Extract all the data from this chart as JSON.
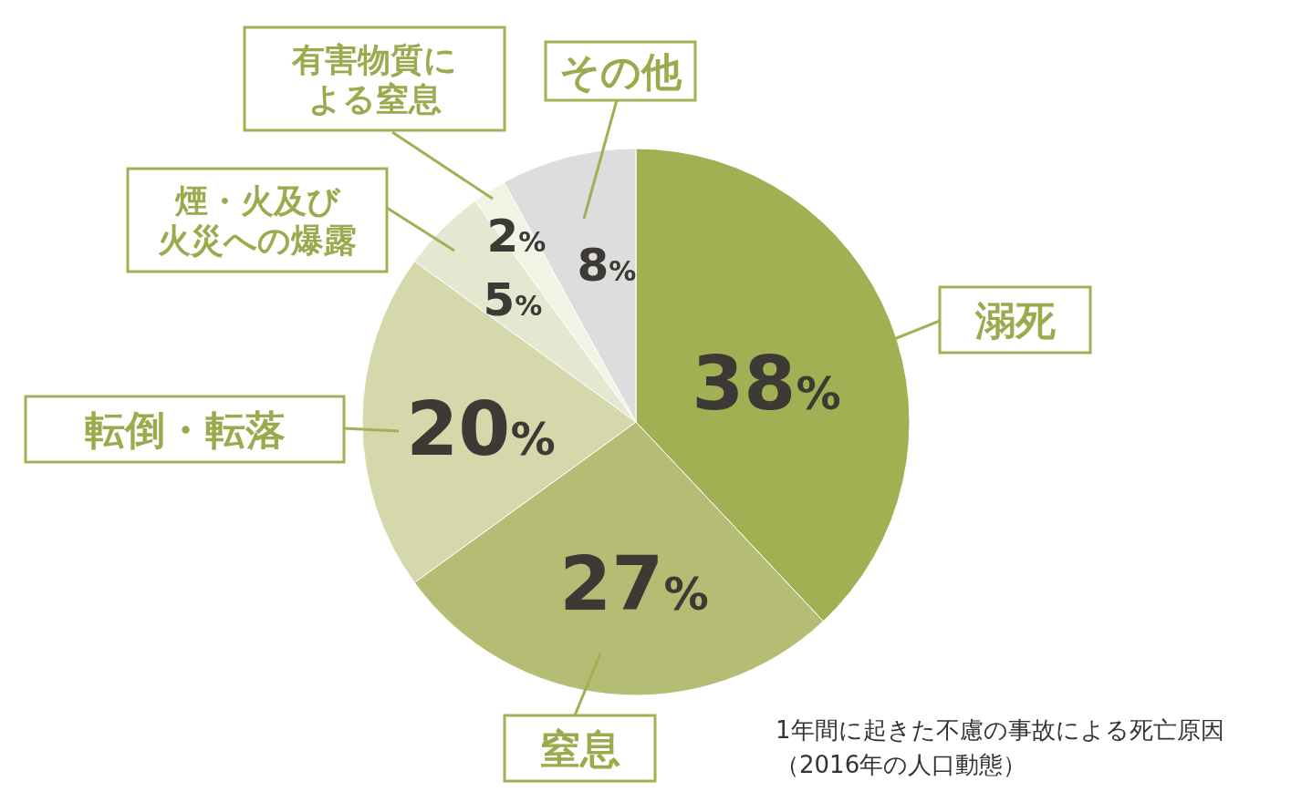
{
  "chart_data": {
    "type": "pie",
    "categories": [
      "溺死",
      "窒息",
      "転倒・転落",
      "煙・火及び火災への爆露",
      "有害物質による窒息",
      "その他"
    ],
    "values": [
      38,
      27,
      20,
      5,
      2,
      8
    ],
    "value_labels": [
      "38%",
      "27%",
      "20%",
      "5%",
      "2%",
      "8%"
    ],
    "colors": [
      "#a2b054",
      "#b5bd74",
      "#d4d8aa",
      "#e5e8d0",
      "#f1f3e4",
      "#dddddd"
    ],
    "annotations": [
      "1年間に起きた不慮の事故による死亡原因",
      "（2016年の人口動態）"
    ]
  }
}
